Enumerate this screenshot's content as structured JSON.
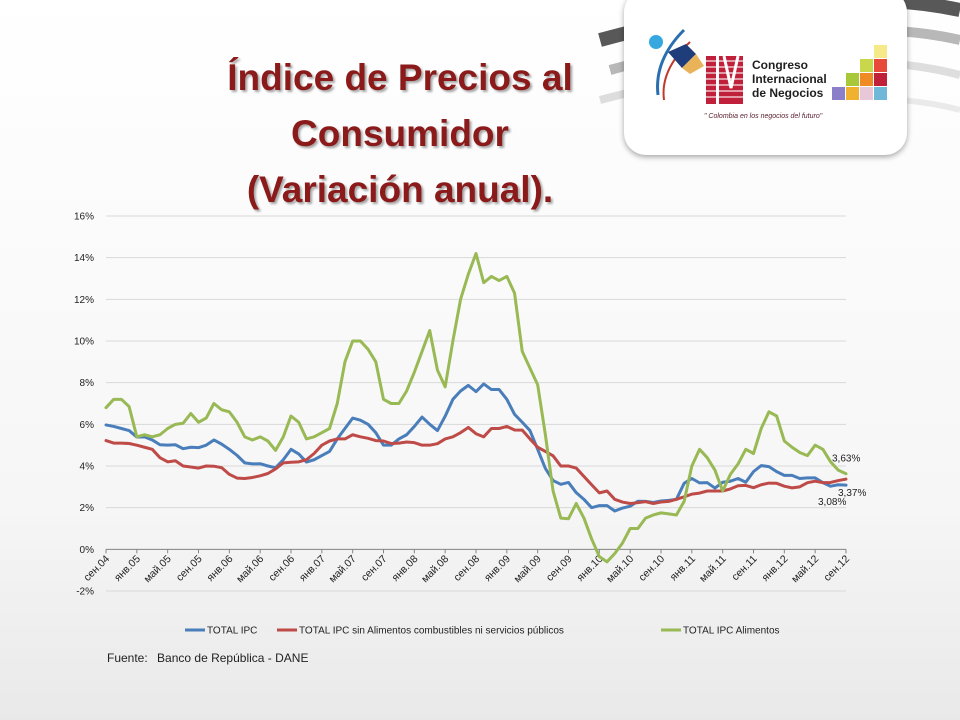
{
  "slide": {
    "title_lines": [
      "Índice de Precios al",
      "Consumidor",
      "(Variación anual)."
    ],
    "logo": {
      "numeral": "IV",
      "lines": [
        "Congreso",
        "Internacional",
        "de Negocios"
      ],
      "tagline": "\" Colombia en los negocios del futuro\""
    },
    "source_label": "Fuente:",
    "source_text": "Banco de República - DANE"
  },
  "colors": {
    "title": "#8b1a1a",
    "total_ipc": "#4a7ebb",
    "sin_alimentos": "#be4b48",
    "alimentos": "#98b954"
  },
  "chart_data": {
    "type": "line",
    "title": "",
    "xlabel": "",
    "ylabel": "",
    "ylim": [
      -2,
      16
    ],
    "y_ticks": [
      "-2%",
      "0%",
      "2%",
      "4%",
      "6%",
      "8%",
      "10%",
      "12%",
      "14%",
      "16%"
    ],
    "y_tick_values": [
      -2,
      0,
      2,
      4,
      6,
      8,
      10,
      12,
      14,
      16
    ],
    "grid": true,
    "legend_position": "bottom",
    "x_tick_labels": [
      "сен.04",
      "янв.05",
      "май.05",
      "сен.05",
      "янв.06",
      "май.06",
      "сен.06",
      "янв.07",
      "май.07",
      "сен.07",
      "янв.08",
      "май.08",
      "сен.08",
      "янв.09",
      "май.09",
      "сен.09",
      "янв.10",
      "май.10",
      "сен.10",
      "янв.11",
      "май.11",
      "сен.11",
      "янв.12",
      "май.12",
      "сен.12"
    ],
    "months": 97,
    "series": [
      {
        "name": "TOTAL IPC",
        "color": "#4a7ebb",
        "values": [
          5.97,
          5.9,
          5.8,
          5.7,
          5.39,
          5.4,
          5.25,
          5.02,
          5.0,
          5.02,
          4.83,
          4.9,
          4.88,
          5.0,
          5.25,
          5.05,
          4.8,
          4.51,
          4.15,
          4.1,
          4.11,
          4.0,
          3.92,
          4.3,
          4.8,
          4.58,
          4.19,
          4.3,
          4.5,
          4.7,
          5.3,
          5.8,
          6.3,
          6.2,
          6.0,
          5.6,
          5.0,
          5.0,
          5.3,
          5.5,
          5.9,
          6.35,
          6.0,
          5.7,
          6.39,
          7.2,
          7.6,
          7.87,
          7.57,
          7.94,
          7.67,
          7.67,
          7.2,
          6.48,
          6.1,
          5.7,
          4.8,
          3.88,
          3.3,
          3.12,
          3.21,
          2.72,
          2.4,
          2.0,
          2.1,
          2.1,
          1.84,
          1.98,
          2.07,
          2.31,
          2.3,
          2.25,
          2.32,
          2.35,
          2.4,
          3.17,
          3.4,
          3.19,
          3.2,
          2.94,
          3.22,
          3.27,
          3.4,
          3.22,
          3.73,
          4.02,
          3.97,
          3.73,
          3.55,
          3.55,
          3.4,
          3.43,
          3.43,
          3.2,
          3.03,
          3.1,
          3.08
        ]
      },
      {
        "name": "TOTAL IPC sin Alimentos combustibles ni servicios públicos",
        "color": "#be4b48",
        "values": [
          5.22,
          5.1,
          5.1,
          5.08,
          5.0,
          4.9,
          4.8,
          4.4,
          4.2,
          4.25,
          4.0,
          3.95,
          3.9,
          4.0,
          3.99,
          3.92,
          3.6,
          3.42,
          3.4,
          3.45,
          3.53,
          3.64,
          3.86,
          4.15,
          4.18,
          4.2,
          4.3,
          4.6,
          5.0,
          5.2,
          5.3,
          5.3,
          5.5,
          5.4,
          5.33,
          5.22,
          5.2,
          5.08,
          5.1,
          5.15,
          5.12,
          5.0,
          5.0,
          5.07,
          5.3,
          5.4,
          5.6,
          5.85,
          5.55,
          5.4,
          5.8,
          5.8,
          5.9,
          5.73,
          5.72,
          5.3,
          4.9,
          4.7,
          4.49,
          4.0,
          4.0,
          3.9,
          3.5,
          3.1,
          2.71,
          2.8,
          2.4,
          2.27,
          2.2,
          2.24,
          2.29,
          2.2,
          2.27,
          2.3,
          2.4,
          2.52,
          2.65,
          2.7,
          2.8,
          2.8,
          2.8,
          2.9,
          3.05,
          3.07,
          2.96,
          3.1,
          3.18,
          3.17,
          3.03,
          2.95,
          3.0,
          3.2,
          3.27,
          3.2,
          3.21,
          3.3,
          3.37
        ]
      },
      {
        "name": "TOTAL IPC Alimentos",
        "color": "#98b954",
        "values": [
          6.8,
          7.2,
          7.2,
          6.85,
          5.4,
          5.5,
          5.4,
          5.5,
          5.8,
          6.0,
          6.05,
          6.52,
          6.1,
          6.3,
          7.0,
          6.7,
          6.6,
          6.1,
          5.4,
          5.25,
          5.4,
          5.2,
          4.75,
          5.4,
          6.4,
          6.1,
          5.3,
          5.4,
          5.6,
          5.8,
          7.0,
          9.0,
          10.0,
          10.0,
          9.6,
          9.0,
          7.2,
          7.0,
          7.0,
          7.6,
          8.5,
          9.5,
          10.5,
          8.6,
          7.8,
          10.0,
          12.0,
          13.2,
          14.2,
          12.8,
          13.1,
          12.9,
          13.1,
          12.3,
          9.5,
          8.7,
          7.9,
          5.5,
          2.8,
          1.5,
          1.47,
          2.2,
          1.5,
          0.5,
          -0.35,
          -0.6,
          -0.2,
          0.3,
          1.0,
          1.0,
          1.5,
          1.65,
          1.75,
          1.7,
          1.65,
          2.3,
          4.0,
          4.8,
          4.4,
          3.8,
          2.8,
          3.6,
          4.1,
          4.8,
          4.6,
          5.8,
          6.6,
          6.4,
          5.2,
          4.9,
          4.65,
          4.5,
          5.0,
          4.8,
          4.2,
          3.8,
          3.63
        ]
      }
    ],
    "annotations": [
      {
        "text": "3,63%",
        "series": 2
      },
      {
        "text": "3,37%",
        "series": 1
      },
      {
        "text": "3,08%",
        "series": 0
      }
    ]
  }
}
